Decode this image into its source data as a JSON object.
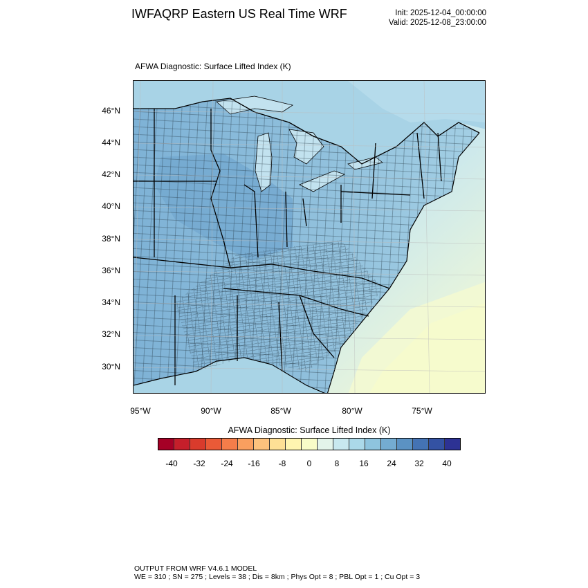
{
  "header": {
    "title": "IWFAQRP Eastern US Real Time WRF",
    "init": "Init: 2025-12-04_00:00:00",
    "valid": "Valid: 2025-12-08_23:00:00"
  },
  "map": {
    "title": "AFWA Diagnostic: Surface Lifted Index   (K)",
    "lat_labels": [
      "46°N",
      "44°N",
      "42°N",
      "40°N",
      "38°N",
      "36°N",
      "34°N",
      "32°N",
      "30°N"
    ],
    "lon_labels": [
      "95°W",
      "90°W",
      "85°W",
      "80°W",
      "75°W"
    ],
    "colors": {
      "land_west": "#7fb3d6",
      "land_east": "#9ccbe3",
      "ocean_cool": "#bde0ec",
      "ocean_warm": "#eef8d6",
      "lake": "#b9dcee",
      "gulf": "#a9d4e6"
    }
  },
  "colorbar": {
    "title": "AFWA Diagnostic: Surface Lifted Index  (K)",
    "labels": [
      "-40",
      "-32",
      "-24",
      "-16",
      "-8",
      "0",
      "8",
      "16",
      "24",
      "32",
      "40"
    ],
    "colors": [
      "#a50026",
      "#c51f2b",
      "#d93b2c",
      "#ea5a37",
      "#f47d4a",
      "#f99f5f",
      "#fdc27d",
      "#fee095",
      "#fff5b0",
      "#f8fcc8",
      "#e3f4ea",
      "#c8e8ef",
      "#abd9e9",
      "#8ec4de",
      "#74acd1",
      "#5b92c3",
      "#4473b4",
      "#3452a3",
      "#2d3294"
    ]
  },
  "footer": {
    "line1": "OUTPUT FROM WRF V4.6.1 MODEL",
    "line2": "WE = 310 ; SN = 275 ; Levels = 38 ; Dis = 8km ; Phys Opt = 8 ; PBL Opt = 1 ; Cu Opt = 3"
  }
}
